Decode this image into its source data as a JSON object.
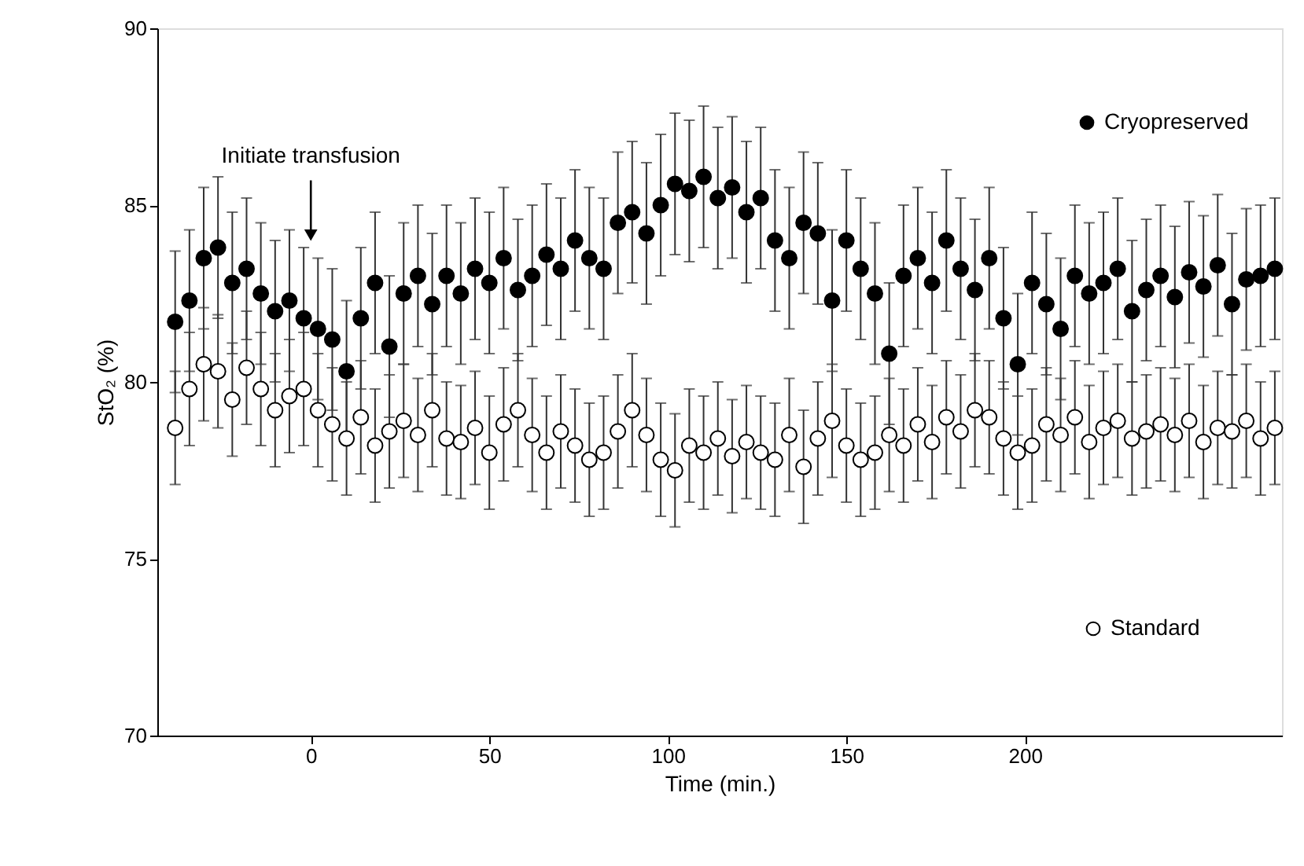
{
  "chart_data": {
    "type": "scatter",
    "xlabel": "Time (min.)",
    "ylabel": "StO₂ (%)",
    "x": [
      -38,
      -34,
      -30,
      -26,
      -22,
      -18,
      -14,
      -10,
      -6,
      -2,
      2,
      6,
      10,
      14,
      18,
      22,
      26,
      30,
      34,
      38,
      42,
      46,
      50,
      54,
      58,
      62,
      66,
      70,
      74,
      78,
      82,
      86,
      90,
      94,
      98,
      102,
      106,
      110,
      114,
      118,
      122,
      126,
      130,
      134,
      138,
      142,
      146,
      150,
      154,
      158,
      162,
      166,
      170,
      174,
      178,
      182,
      186,
      190,
      194,
      198,
      202,
      206,
      210,
      214,
      218,
      222,
      226,
      230,
      234,
      238,
      242,
      246,
      250,
      254,
      258,
      262,
      266,
      270
    ],
    "series": [
      {
        "name": "Cryopreserved",
        "color": "#000000",
        "values": [
          81.7,
          82.3,
          83.5,
          83.8,
          82.8,
          83.2,
          82.5,
          82.0,
          82.3,
          81.8,
          81.5,
          81.2,
          80.3,
          81.8,
          82.8,
          81.0,
          82.5,
          83.0,
          82.2,
          83.0,
          82.5,
          83.2,
          82.8,
          83.5,
          82.6,
          83.0,
          83.6,
          83.2,
          84.0,
          83.5,
          83.2,
          84.5,
          84.8,
          84.2,
          85.0,
          85.6,
          85.4,
          85.8,
          85.2,
          85.5,
          84.8,
          85.2,
          84.0,
          83.5,
          84.5,
          84.2,
          82.3,
          84.0,
          83.2,
          82.5,
          80.8,
          83.0,
          83.5,
          82.8,
          84.0,
          83.2,
          82.6,
          83.5,
          81.8,
          80.5,
          82.8,
          82.2,
          81.5,
          83.0,
          82.5,
          82.8,
          83.2,
          82.0,
          82.6,
          83.0,
          82.4,
          83.1,
          82.7,
          83.3,
          82.2,
          82.9,
          83.0,
          83.2
        ],
        "errors": [
          2,
          2,
          2,
          2,
          2,
          2,
          2,
          2,
          2,
          2,
          2,
          2,
          2,
          2,
          2,
          2,
          2,
          2,
          2,
          2,
          2,
          2,
          2,
          2,
          2,
          2,
          2,
          2,
          2,
          2,
          2,
          2,
          2,
          2,
          2,
          2,
          2,
          2,
          2,
          2,
          2,
          2,
          2,
          2,
          2,
          2,
          2,
          2,
          2,
          2,
          2,
          2,
          2,
          2,
          2,
          2,
          2,
          2,
          2,
          2,
          2,
          2,
          2,
          2,
          2,
          2,
          2,
          2,
          2,
          2,
          2,
          2,
          2,
          2,
          2,
          2,
          2,
          2
        ]
      },
      {
        "name": "Standard",
        "color": "#ffffff",
        "values": [
          78.7,
          79.8,
          80.5,
          80.3,
          79.5,
          80.4,
          79.8,
          79.2,
          79.6,
          79.8,
          79.2,
          78.8,
          78.4,
          79.0,
          78.2,
          78.6,
          78.9,
          78.5,
          79.2,
          78.4,
          78.3,
          78.7,
          78.0,
          78.8,
          79.2,
          78.5,
          78.0,
          78.6,
          78.2,
          77.8,
          78.0,
          78.6,
          79.2,
          78.5,
          77.8,
          77.5,
          78.2,
          78.0,
          78.4,
          77.9,
          78.3,
          78.0,
          77.8,
          78.5,
          77.6,
          78.4,
          78.9,
          78.2,
          77.8,
          78.0,
          78.5,
          78.2,
          78.8,
          78.3,
          79.0,
          78.6,
          79.2,
          79.0,
          78.4,
          78.0,
          78.2,
          78.8,
          78.5,
          79.0,
          78.3,
          78.7,
          78.9,
          78.4,
          78.6,
          78.8,
          78.5,
          78.9,
          78.3,
          78.7,
          78.6,
          78.9,
          78.4,
          78.7
        ],
        "errors": [
          1.6,
          1.6,
          1.6,
          1.6,
          1.6,
          1.6,
          1.6,
          1.6,
          1.6,
          1.6,
          1.6,
          1.6,
          1.6,
          1.6,
          1.6,
          1.6,
          1.6,
          1.6,
          1.6,
          1.6,
          1.6,
          1.6,
          1.6,
          1.6,
          1.6,
          1.6,
          1.6,
          1.6,
          1.6,
          1.6,
          1.6,
          1.6,
          1.6,
          1.6,
          1.6,
          1.6,
          1.6,
          1.6,
          1.6,
          1.6,
          1.6,
          1.6,
          1.6,
          1.6,
          1.6,
          1.6,
          1.6,
          1.6,
          1.6,
          1.6,
          1.6,
          1.6,
          1.6,
          1.6,
          1.6,
          1.6,
          1.6,
          1.6,
          1.6,
          1.6,
          1.6,
          1.6,
          1.6,
          1.6,
          1.6,
          1.6,
          1.6,
          1.6,
          1.6,
          1.6,
          1.6,
          1.6,
          1.6,
          1.6,
          1.6,
          1.6,
          1.6,
          1.6
        ]
      }
    ],
    "annotations": [
      {
        "text": "Initiate transfusion",
        "x": 0,
        "y": 83.8
      }
    ],
    "xlim": [
      -43,
      272
    ],
    "xticks": [
      0,
      50,
      100,
      150,
      200
    ],
    "ylim": [
      70,
      90
    ],
    "yticks": [
      70,
      75,
      80,
      85,
      90
    ],
    "marker": "circle",
    "grid": false,
    "legend": "right"
  }
}
